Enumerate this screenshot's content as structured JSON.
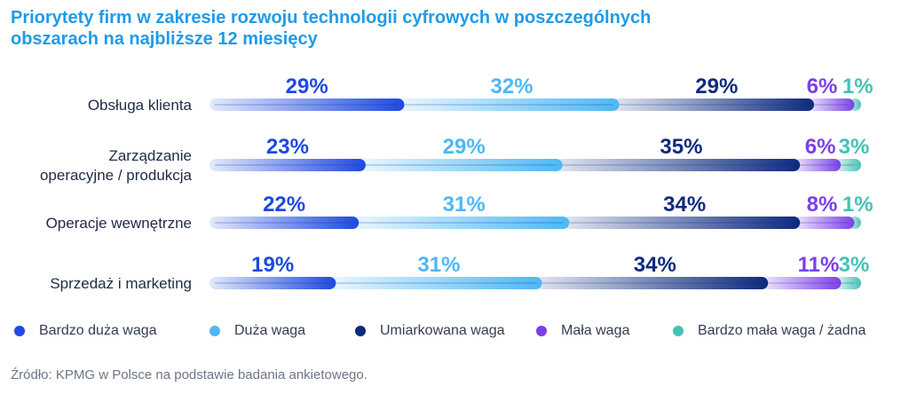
{
  "title_lines": [
    "Priorytety firm w zakresie rozwoju technologii cyfrowych w poszczególnych",
    "obszarach na najbliższe 12 miesięcy"
  ],
  "colors": {
    "title": "#1E9BE8",
    "very_high": "#1E49E2",
    "high": "#4DB8F5",
    "moderate": "#0C2A7E",
    "low": "#7B3FEA",
    "very_low": "#45C2B5"
  },
  "chart_data": {
    "type": "bar",
    "orientation": "horizontal",
    "stacked": true,
    "categories": [
      [
        "Obsługa klienta"
      ],
      [
        "Zarządzanie",
        "operacyjne / produkcja"
      ],
      [
        "Operacje wewnętrzne"
      ],
      [
        "Sprzedaż i marketing"
      ]
    ],
    "series": [
      {
        "name": "Bardzo duża waga",
        "color": "#1E49E2",
        "values": [
          29,
          23,
          22,
          19
        ]
      },
      {
        "name": "Duża waga",
        "color": "#4DB8F5",
        "values": [
          32,
          29,
          31,
          31
        ]
      },
      {
        "name": "Umiarkowana waga",
        "color": "#0C2A7E",
        "values": [
          29,
          35,
          34,
          34
        ]
      },
      {
        "name": "Mała waga",
        "color": "#7B3FEA",
        "values": [
          6,
          6,
          8,
          11
        ]
      },
      {
        "name": "Bardzo mała waga / żadna",
        "color": "#45C2B5",
        "values": [
          1,
          3,
          1,
          3
        ]
      }
    ],
    "value_suffix": "%",
    "legend_position": "bottom",
    "grid": false
  },
  "source": "Źródło: KPMG w Polsce na podstawie badania ankietowego."
}
